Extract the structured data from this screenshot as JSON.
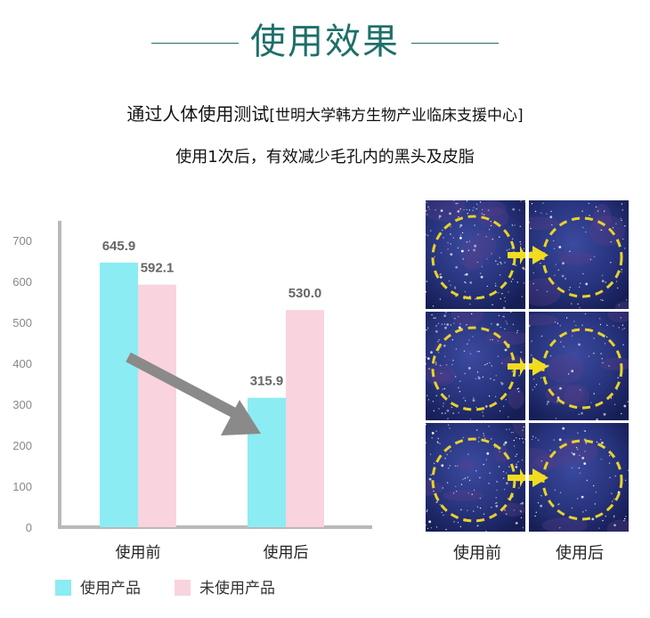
{
  "header": {
    "title": "使用效果",
    "subtitle_main": "通过人体使用测试",
    "subtitle_source": "[世明大学韩方生物产业临床支援中心]",
    "result_text": "使用1次后，有效减少毛孔内的黑头及皮脂"
  },
  "chart_data": {
    "type": "bar",
    "categories": [
      "使用前",
      "使用后"
    ],
    "series": [
      {
        "name": "使用产品",
        "values": [
          645.9,
          315.9
        ],
        "color": "#8cecf3"
      },
      {
        "name": "未使用产品",
        "values": [
          592.1,
          530.0
        ],
        "color": "#f9d3dd"
      }
    ],
    "value_labels": [
      [
        "645.9",
        "315.9"
      ],
      [
        "592.1",
        "530.0"
      ]
    ],
    "ylim": [
      0,
      700
    ],
    "yticks": [
      0,
      100,
      200,
      300,
      400,
      500,
      600,
      700
    ],
    "grid": false,
    "legend_position": "bottom-left",
    "trend_arrow": {
      "color": "#8a8a8a",
      "direction": "down"
    }
  },
  "photos": {
    "labels": [
      "使用前",
      "使用后"
    ],
    "arrow_color": "#f2dc1f",
    "circle_color": "#e8d22a"
  }
}
